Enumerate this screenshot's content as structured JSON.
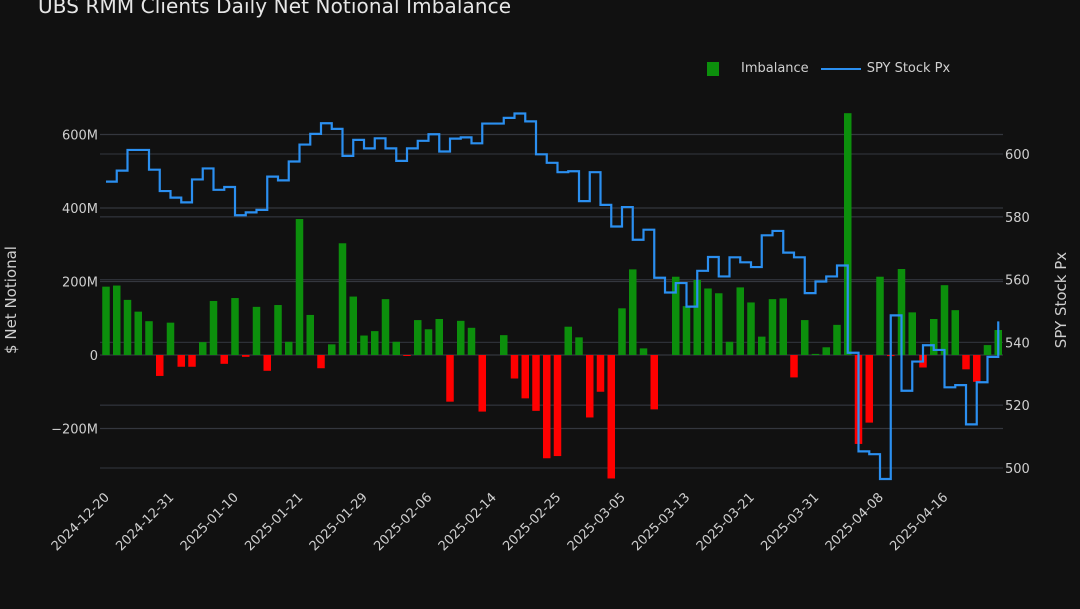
{
  "chart_data": {
    "type": "bar+line",
    "title": "UBS RMM Clients Daily Net Notional Imbalance",
    "ylabel_left": "$ Net Notional",
    "ylabel_right": "SPY Stock Px",
    "legend": [
      "Imbalance",
      "SPY Stock Px"
    ],
    "legend_position": "top-right",
    "grid": true,
    "ylim_left": [
      -340,
      700
    ],
    "ylim_right": [
      488,
      622
    ],
    "yticks_left": [
      {
        "v": 600,
        "label": "600M"
      },
      {
        "v": 400,
        "label": "400M"
      },
      {
        "v": 200,
        "label": "200M"
      },
      {
        "v": 0,
        "label": "0"
      },
      {
        "v": -200,
        "label": "−200M"
      }
    ],
    "yticks_right": [
      600,
      580,
      560,
      540,
      520,
      500
    ],
    "xtick_labels": [
      "2024-12-20",
      "2024-12-31",
      "2025-01-10",
      "2025-01-21",
      "2025-01-29",
      "2025-02-06",
      "2025-02-14",
      "2025-02-25",
      "2025-03-05",
      "2025-03-13",
      "2025-03-21",
      "2025-03-31",
      "2025-04-08",
      "2025-04-16"
    ],
    "dates": [
      "2024-12-20",
      "2024-12-23",
      "2024-12-24",
      "2024-12-26",
      "2024-12-27",
      "2024-12-30",
      "2024-12-31",
      "2025-01-02",
      "2025-01-03",
      "2025-01-06",
      "2025-01-07",
      "2025-01-08",
      "2025-01-10",
      "2025-01-13",
      "2025-01-14",
      "2025-01-15",
      "2025-01-16",
      "2025-01-17",
      "2025-01-21",
      "2025-01-22",
      "2025-01-23",
      "2025-01-24",
      "2025-01-27",
      "2025-01-28",
      "2025-01-29",
      "2025-01-30",
      "2025-01-31",
      "2025-02-03",
      "2025-02-04",
      "2025-02-05",
      "2025-02-06",
      "2025-02-07",
      "2025-02-10",
      "2025-02-11",
      "2025-02-12",
      "2025-02-13",
      "2025-02-14",
      "2025-02-18",
      "2025-02-19",
      "2025-02-20",
      "2025-02-21",
      "2025-02-24",
      "2025-02-25",
      "2025-02-26",
      "2025-02-27",
      "2025-02-28",
      "2025-03-03",
      "2025-03-04",
      "2025-03-05",
      "2025-03-06",
      "2025-03-07",
      "2025-03-10",
      "2025-03-11",
      "2025-03-12",
      "2025-03-13",
      "2025-03-14",
      "2025-03-17",
      "2025-03-18",
      "2025-03-19",
      "2025-03-20",
      "2025-03-21",
      "2025-03-24",
      "2025-03-25",
      "2025-03-26",
      "2025-03-27",
      "2025-03-28",
      "2025-03-31",
      "2025-04-01",
      "2025-04-02",
      "2025-04-03",
      "2025-04-04",
      "2025-04-07",
      "2025-04-08",
      "2025-04-09",
      "2025-04-10",
      "2025-04-11",
      "2025-04-14",
      "2025-04-15",
      "2025-04-16",
      "2025-04-17",
      "2025-04-21",
      "2025-04-22",
      "2025-04-23",
      "2025-04-24"
    ],
    "series": [
      {
        "name": "Imbalance",
        "type": "bar",
        "unit": "$M",
        "positive_color": "#0c8f0c",
        "negative_color": "#ff0000",
        "values": [
          186,
          189,
          150,
          118,
          92,
          -57,
          88,
          -32,
          -32,
          35,
          147,
          -24,
          155,
          -5,
          131,
          -43,
          136,
          36,
          370,
          109,
          -36,
          29,
          304,
          159,
          53,
          65,
          152,
          36,
          -2,
          95,
          70,
          98,
          -127,
          93,
          74,
          -154,
          0,
          54,
          -64,
          -118,
          -152,
          -281,
          -275,
          77,
          48,
          -170,
          -100,
          -336,
          127,
          233,
          18,
          -148,
          0,
          213,
          133,
          204,
          181,
          168,
          36,
          184,
          143,
          50,
          152,
          154,
          -61,
          95,
          3,
          21,
          82,
          658,
          -242,
          -184,
          213,
          -3,
          234,
          116,
          -34,
          98,
          190,
          122,
          -39,
          -73,
          27,
          68
        ]
      },
      {
        "name": "SPY Stock Px",
        "type": "line",
        "line_shape": "hv",
        "color": "#2b8ff0",
        "values": [
          591.2,
          594.7,
          601.3,
          601.3,
          595.0,
          588.2,
          586.1,
          584.6,
          591.9,
          595.4,
          588.6,
          589.5,
          580.5,
          581.4,
          582.2,
          592.8,
          591.6,
          597.6,
          603.0,
          606.4,
          609.8,
          608.0,
          599.4,
          604.5,
          601.8,
          605.0,
          601.8,
          597.8,
          601.8,
          604.2,
          606.3,
          600.8,
          604.9,
          605.3,
          603.4,
          609.7,
          609.7,
          611.5,
          612.9,
          610.4,
          599.9,
          597.2,
          594.2,
          594.5,
          585.0,
          594.2,
          583.8,
          576.9,
          583.1,
          572.7,
          575.9,
          560.6,
          555.9,
          558.9,
          551.4,
          562.8,
          567.2,
          561.0,
          567.1,
          565.5,
          564.0,
          574.1,
          575.5,
          568.6,
          567.1,
          555.7,
          559.4,
          561.0,
          564.5,
          536.7,
          505.3,
          504.4,
          496.5,
          548.6,
          524.6,
          533.9,
          539.1,
          537.6,
          525.7,
          526.4,
          513.9,
          527.3,
          535.4,
          546.7
        ]
      }
    ]
  }
}
